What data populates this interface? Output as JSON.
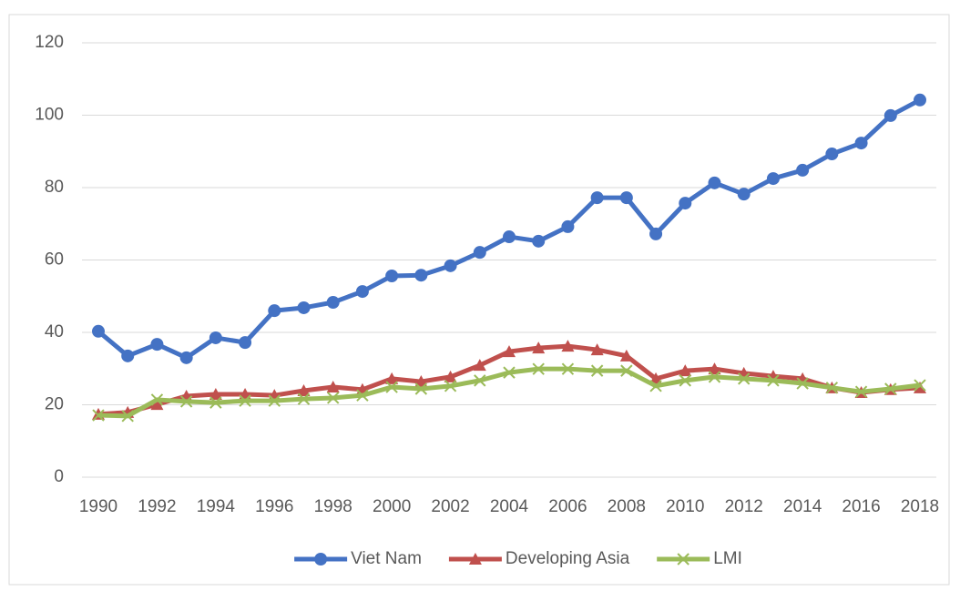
{
  "chart_data": {
    "type": "line",
    "x": [
      1990,
      1991,
      1992,
      1993,
      1994,
      1995,
      1996,
      1997,
      1998,
      1999,
      2000,
      2001,
      2002,
      2003,
      2004,
      2005,
      2006,
      2007,
      2008,
      2009,
      2010,
      2011,
      2012,
      2013,
      2014,
      2015,
      2016,
      2017,
      2018
    ],
    "xlim": [
      1990,
      2018
    ],
    "xticks": [
      1990,
      1992,
      1994,
      1996,
      1998,
      2000,
      2002,
      2004,
      2006,
      2008,
      2010,
      2012,
      2014,
      2016,
      2018
    ],
    "ylim": [
      0,
      120
    ],
    "yticks": [
      0,
      20,
      40,
      60,
      80,
      100,
      120
    ],
    "grid": true,
    "legend": "bottom",
    "series": [
      {
        "name": "Viet Nam",
        "color": "#4472c4",
        "marker": "circle",
        "values": [
          40.3,
          33.5,
          36.7,
          33.0,
          38.5,
          37.2,
          46.0,
          46.8,
          48.3,
          51.3,
          55.6,
          55.8,
          58.4,
          62.1,
          66.4,
          65.2,
          69.2,
          77.2,
          77.2,
          67.2,
          75.7,
          81.3,
          78.2,
          82.5,
          84.8,
          89.3,
          92.3,
          99.9,
          104.2
        ]
      },
      {
        "name": "Developing Asia",
        "color": "#c0504d",
        "marker": "triangle",
        "values": [
          17.4,
          17.9,
          20.1,
          22.4,
          22.9,
          22.9,
          22.6,
          23.9,
          24.9,
          24.2,
          27.2,
          26.4,
          27.7,
          30.9,
          34.7,
          35.7,
          36.2,
          35.2,
          33.5,
          27.2,
          29.4,
          29.9,
          28.7,
          27.9,
          27.2,
          24.7,
          23.4,
          24.2,
          24.7
        ]
      },
      {
        "name": "LMI",
        "color": "#9bbb59",
        "marker": "x",
        "values": [
          17.1,
          16.9,
          21.4,
          20.9,
          20.6,
          21.1,
          21.1,
          21.6,
          21.9,
          22.6,
          24.9,
          24.4,
          25.2,
          26.7,
          28.9,
          29.9,
          29.9,
          29.4,
          29.4,
          25.2,
          26.7,
          27.7,
          27.2,
          26.7,
          25.9,
          24.7,
          23.6,
          24.4,
          25.4
        ]
      }
    ]
  }
}
